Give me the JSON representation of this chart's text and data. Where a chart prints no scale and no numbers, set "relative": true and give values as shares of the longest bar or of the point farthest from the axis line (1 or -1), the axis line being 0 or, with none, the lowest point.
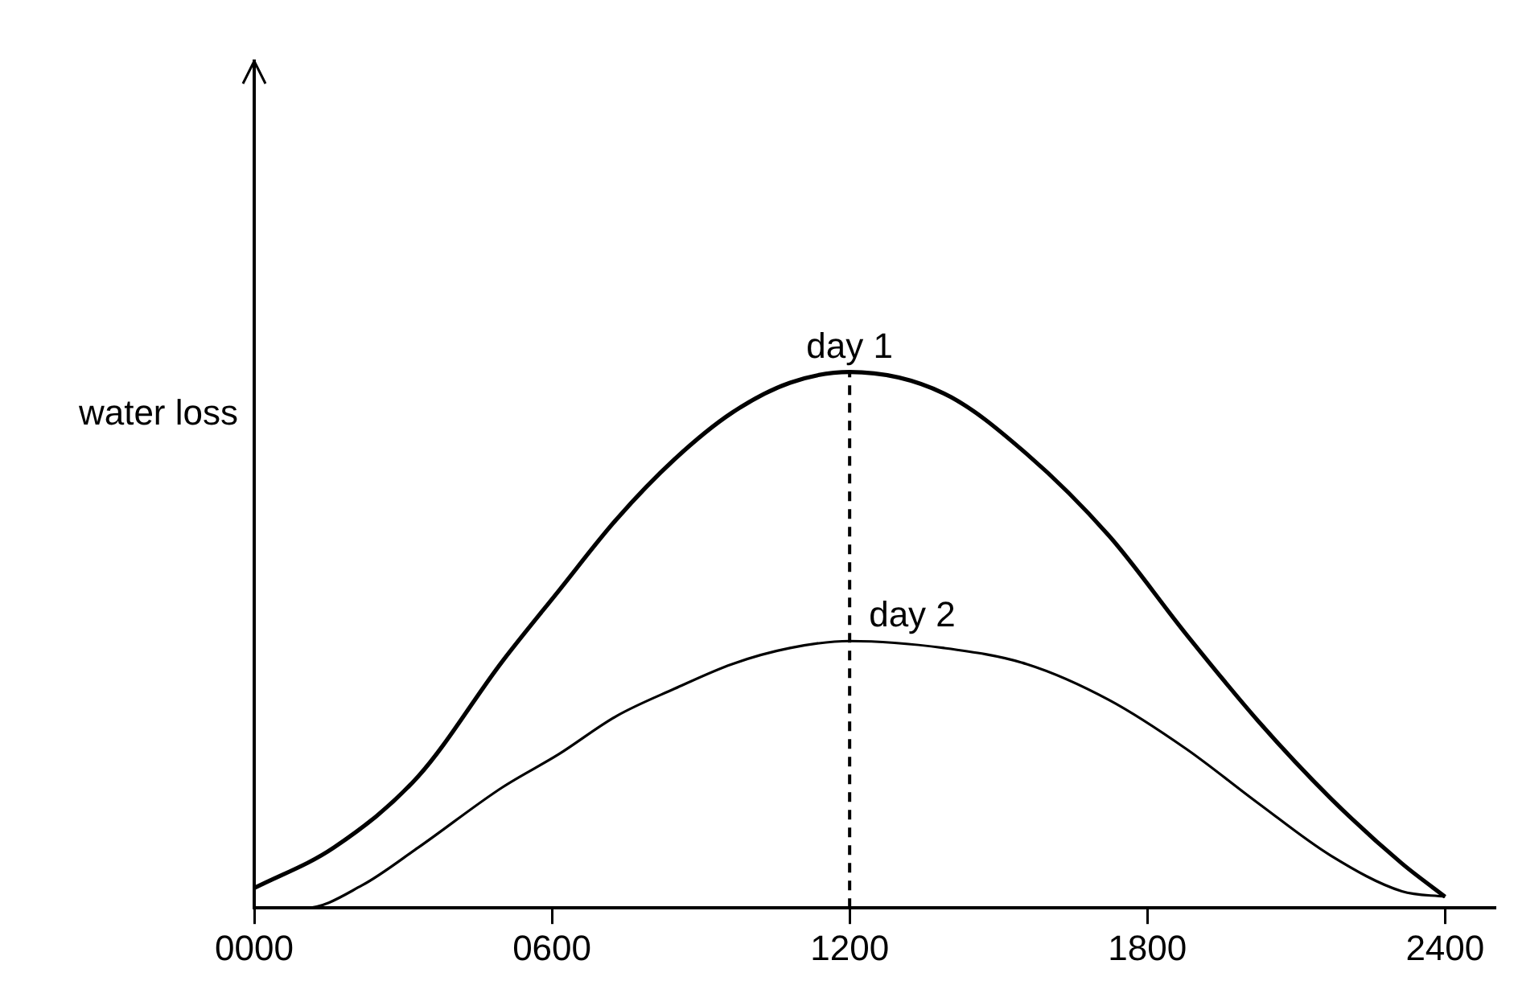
{
  "chart_data": {
    "type": "line",
    "relative": true,
    "ylabel": "water loss",
    "xlim": [
      0,
      2500
    ],
    "xticks": [
      {
        "value": 0,
        "label": "0000"
      },
      {
        "value": 600,
        "label": "0600"
      },
      1200,
      1800,
      2400
    ],
    "ref_lines": [
      {
        "axis": "x",
        "value": 1200,
        "line_style": "dashed",
        "color": "#000000"
      }
    ],
    "grid": false,
    "legend": false,
    "marker": "none",
    "line_style": "solid",
    "series": [
      {
        "name": "day 1",
        "color": "#000000",
        "x": [
          0,
          161,
          331,
          500,
          614,
          730,
          847,
          963,
          1080,
          1200,
          1390,
          1557,
          1723,
          1878,
          2024,
          2169,
          2313,
          2400
        ],
        "values": [
          0.037,
          0.113,
          0.246,
          0.46,
          0.592,
          0.725,
          0.837,
          0.924,
          0.98,
          1,
          0.96,
          0.847,
          0.694,
          0.511,
          0.348,
          0.205,
          0.083,
          0.021
        ]
      },
      {
        "name": "day 2",
        "color": "#000000",
        "x": [
          0,
          104,
          217,
          331,
          500,
          614,
          730,
          847,
          963,
          1080,
          1200,
          1390,
          1557,
          1723,
          1878,
          2024,
          2169,
          2313,
          2400
        ],
        "values": [
          0,
          0,
          0.042,
          0.113,
          0.225,
          0.287,
          0.358,
          0.409,
          0.455,
          0.485,
          0.498,
          0.485,
          0.455,
          0.388,
          0.297,
          0.195,
          0.098,
          0.031,
          0.021
        ]
      }
    ]
  }
}
